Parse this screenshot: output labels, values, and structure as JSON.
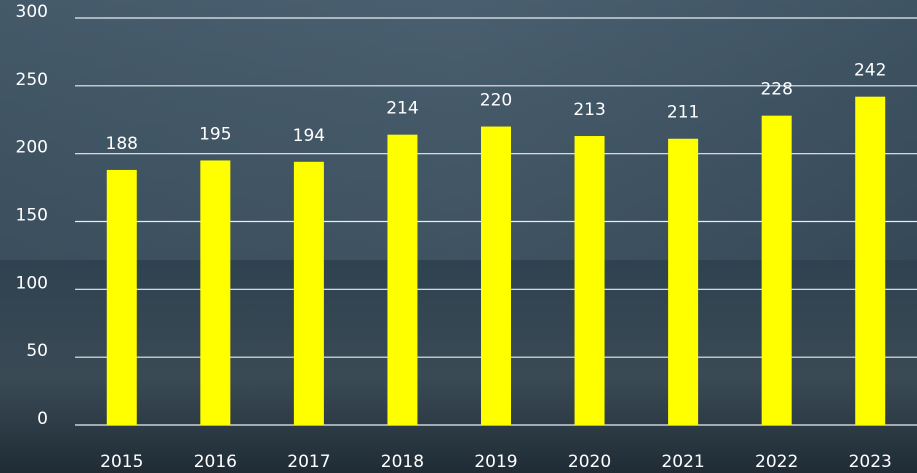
{
  "chart_data": {
    "type": "bar",
    "categories": [
      "2015",
      "2016",
      "2017",
      "2018",
      "2019",
      "2020",
      "2021",
      "2022",
      "2023"
    ],
    "values": [
      188,
      195,
      194,
      214,
      220,
      213,
      211,
      228,
      242
    ],
    "color": "#ffff00",
    "ylim": [
      0,
      300
    ],
    "yticks": [
      0,
      50,
      100,
      150,
      200,
      250,
      300
    ],
    "grid": true
  }
}
